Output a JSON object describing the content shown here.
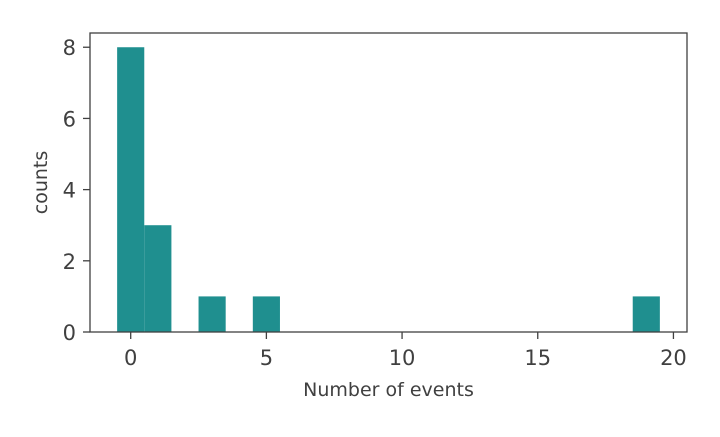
{
  "chart_data": {
    "type": "bar",
    "title": "",
    "xlabel": "Number of events",
    "ylabel": "counts",
    "xlim": [
      -1.5,
      20.5
    ],
    "ylim": [
      0,
      8.4
    ],
    "xticks": [
      0,
      5,
      10,
      15,
      20
    ],
    "xtick_labels": [
      "0",
      "5",
      "10",
      "15",
      "20"
    ],
    "yticks": [
      0,
      2,
      4,
      6,
      8
    ],
    "ytick_labels": [
      "0",
      "2",
      "4",
      "6",
      "8"
    ],
    "bar_color": "#1f8f8f",
    "bins": [
      {
        "x0": -0.5,
        "x1": 0.5,
        "value": 8
      },
      {
        "x0": 0.5,
        "x1": 1.5,
        "value": 3
      },
      {
        "x0": 2.5,
        "x1": 3.5,
        "value": 1
      },
      {
        "x0": 4.5,
        "x1": 5.5,
        "value": 1
      },
      {
        "x0": 18.5,
        "x1": 19.5,
        "value": 1
      }
    ],
    "grid": false,
    "legend": "none"
  }
}
